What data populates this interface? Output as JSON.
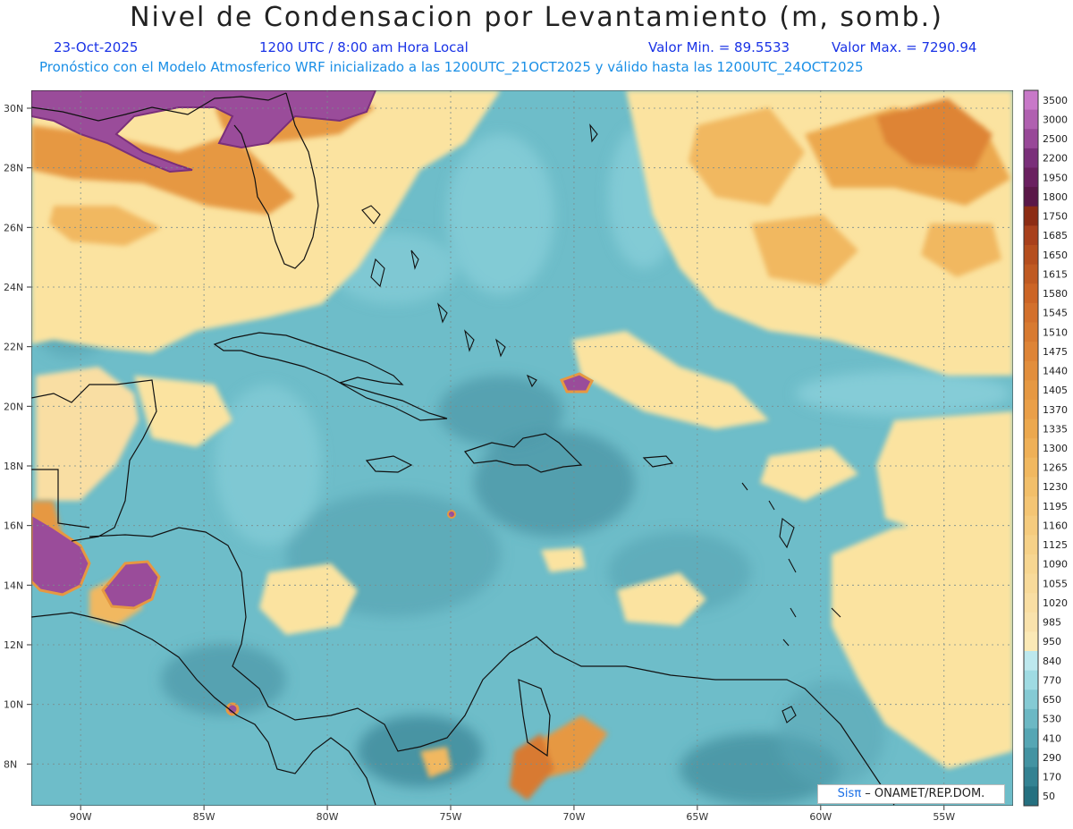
{
  "header": {
    "title": "Nivel de Condensacion por Levantamiento (m, somb.)",
    "date": "23-Oct-2025",
    "time": "1200 UTC / 8:00 am Hora Local",
    "valmin": "Valor Min. = 89.5533",
    "valmax": "Valor Max. = 7290.94",
    "forecast": "Pronóstico con el Modelo Atmosferico WRF inicializado a las 1200UTC_21OCT2025 y válido hasta las  1200UTC_24OCT2025"
  },
  "axes": {
    "lat_labels": [
      "30N",
      "28N",
      "26N",
      "24N",
      "22N",
      "20N",
      "18N",
      "16N",
      "14N",
      "12N",
      "10N",
      "8N"
    ],
    "lat_values": [
      30,
      28,
      26,
      24,
      22,
      20,
      18,
      16,
      14,
      12,
      10,
      8
    ],
    "lon_labels": [
      "90W",
      "85W",
      "80W",
      "75W",
      "70W",
      "65W",
      "60W",
      "55W"
    ],
    "lon_values": [
      -90,
      -85,
      -80,
      -75,
      -70,
      -65,
      -60,
      -55
    ],
    "lon_range": [
      -92,
      -52.2
    ],
    "lat_range": [
      6.6,
      30.6
    ]
  },
  "colorbar": {
    "levels": [
      "3500",
      "3000",
      "2500",
      "2200",
      "1950",
      "1800",
      "1750",
      "1685",
      "1650",
      "1615",
      "1580",
      "1545",
      "1510",
      "1475",
      "1440",
      "1405",
      "1370",
      "1335",
      "1300",
      "1265",
      "1230",
      "1195",
      "1160",
      "1125",
      "1090",
      "1055",
      "1020",
      "985",
      "950",
      "840",
      "770",
      "650",
      "530",
      "410",
      "290",
      "170",
      "50"
    ],
    "colors": [
      "#c878c8",
      "#b060b0",
      "#984898",
      "#7a2f7a",
      "#6a2060",
      "#5a1848",
      "#8c2c14",
      "#a8401c",
      "#b54e1e",
      "#c05a22",
      "#cc6526",
      "#d3702c",
      "#d87a30",
      "#de8436",
      "#e28e3c",
      "#e69842",
      "#ea9f48",
      "#eca84e",
      "#efb057",
      "#f1b860",
      "#f2bf6a",
      "#f4c574",
      "#f5cb7e",
      "#f6d188",
      "#f7d691",
      "#f8da9a",
      "#f9dea3",
      "#f9e2ac",
      "#fbe9b6",
      "#bde8ee",
      "#9fdbe3",
      "#85cad4",
      "#6cb8c4",
      "#56a6b4",
      "#4393a2",
      "#338292",
      "#257080"
    ]
  },
  "colors": {
    "sea": "#6ebdc9",
    "dry": "#fbe3a0",
    "orange": "#e69842",
    "purple": "#9a4c9a",
    "coast": "#111111",
    "grid": "#7a8d8d"
  },
  "credit": {
    "brand": "Sis",
    "pi": "π",
    "org": "– ONAMET/REP.DOM."
  }
}
